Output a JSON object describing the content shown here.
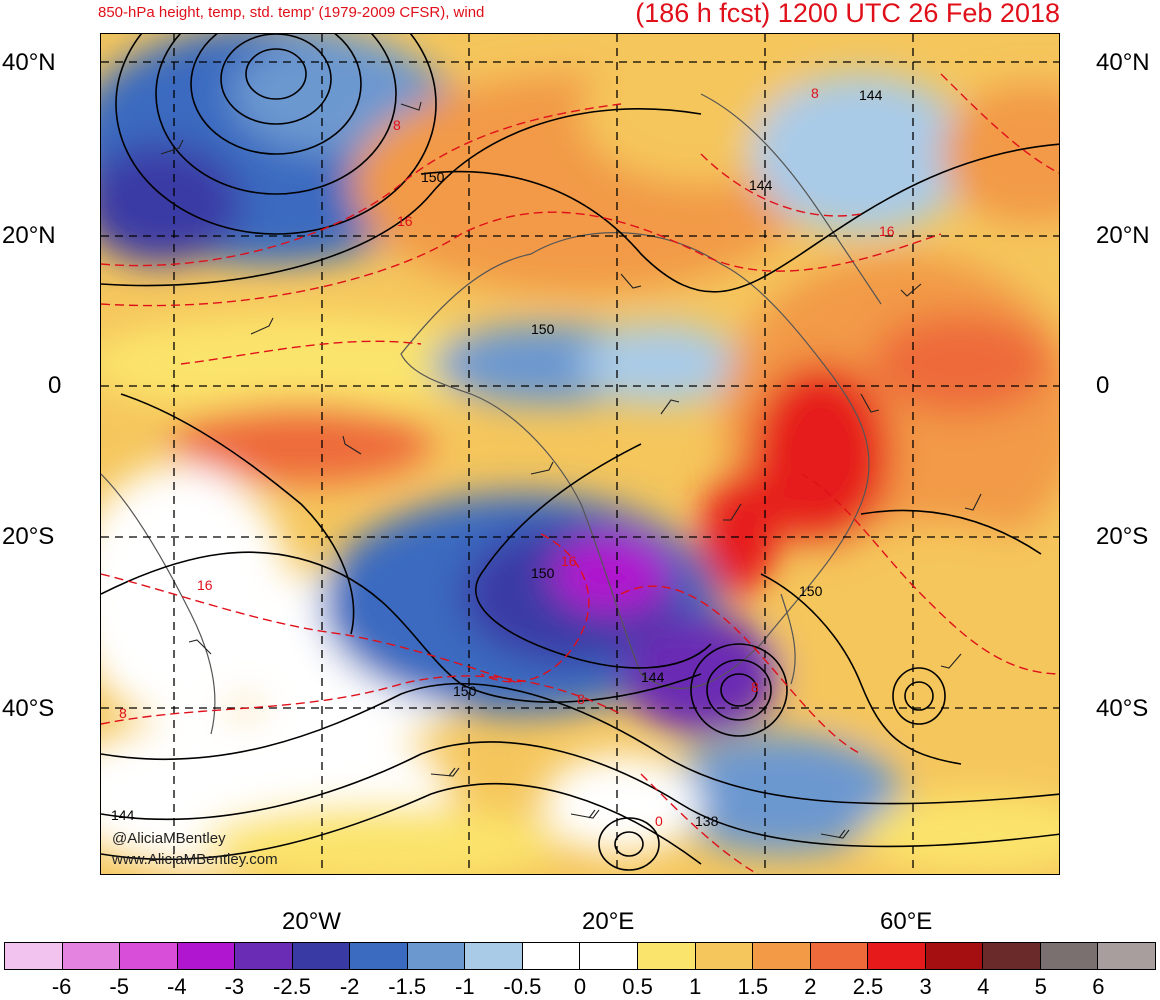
{
  "header": {
    "subtitle": "850-hPa height, temp, std. temp' (1979-2009 CFSR), wind",
    "title": "(186 h fcst) 1200 UTC 26 Feb 2018"
  },
  "lat_labels": [
    "40°N",
    "20°N",
    "0",
    "20°S",
    "40°S"
  ],
  "lon_labels": [
    "20°W",
    "20°E",
    "60°E"
  ],
  "contour_labels": [
    "144",
    "150",
    "150",
    "144",
    "150",
    "150",
    "150",
    "144",
    "144",
    "138"
  ],
  "temp_labels": [
    "8",
    "16",
    "16",
    "8",
    "16",
    "16",
    "8",
    "8",
    "8",
    "0"
  ],
  "colorbar": {
    "ticks": [
      "-6",
      "-5",
      "-4",
      "-3",
      "-2.5",
      "-2",
      "-1.5",
      "-1",
      "-0.5",
      "0",
      "0.5",
      "1",
      "1.5",
      "2",
      "2.5",
      "3",
      "4",
      "5",
      "6"
    ],
    "colors": [
      "#f2c3ee",
      "#e584e0",
      "#d84ed8",
      "#b015cf",
      "#6a2cb4",
      "#3a3aa5",
      "#3b6bc0",
      "#6c98d0",
      "#a9cbe8",
      "#ffffff",
      "#ffffff",
      "#fbe46c",
      "#f5c65c",
      "#f29a46",
      "#ee6a3a",
      "#e61a1a",
      "#a50f12",
      "#6b2a2a",
      "#7a7070",
      "#a89e9e"
    ]
  },
  "credits": {
    "handle": "@AliciaMBentley",
    "website": "www.AliciaMBentley.com"
  }
}
